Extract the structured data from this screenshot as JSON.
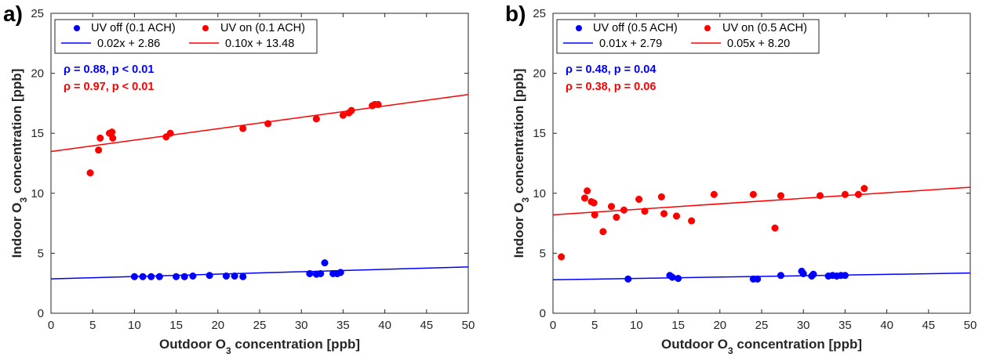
{
  "chart_data": [
    {
      "type": "scatter",
      "panel_label": "a)",
      "xlabel": "Outdoor O3 concentration [ppb]",
      "ylabel": "Indoor O3 concentration [ppb]",
      "xlim": [
        0,
        50
      ],
      "ylim": [
        0,
        25
      ],
      "xticks": [
        0,
        5,
        10,
        15,
        20,
        25,
        30,
        35,
        40,
        45,
        50
      ],
      "yticks": [
        0,
        5,
        10,
        15,
        20,
        25
      ],
      "grid": false,
      "legend_position": "top-left",
      "series": [
        {
          "name": "UV off (0.1 ACH)",
          "color": "#0000ff",
          "x": [
            10.0,
            11.0,
            12.0,
            13.0,
            15.0,
            16.0,
            17.0,
            19.0,
            21.0,
            22.0,
            23.0,
            31.0,
            31.8,
            32.3,
            32.8,
            33.8,
            34.3,
            34.7
          ],
          "y": [
            3.05,
            3.05,
            3.05,
            3.05,
            3.05,
            3.05,
            3.1,
            3.15,
            3.1,
            3.1,
            3.05,
            3.3,
            3.25,
            3.3,
            4.2,
            3.3,
            3.3,
            3.4
          ],
          "fit": {
            "label": "0.02x + 2.86",
            "slope": 0.02,
            "intercept": 2.86
          },
          "stat": "ρ = 0.88, p < 0.01"
        },
        {
          "name": "UV on (0.1 ACH)",
          "color": "#ff0000",
          "x": [
            4.7,
            5.7,
            5.9,
            7.0,
            7.3,
            7.4,
            13.8,
            14.3,
            23.0,
            26.0,
            31.8,
            35.0,
            35.7,
            36.0,
            38.5,
            38.8,
            39.2
          ],
          "y": [
            11.7,
            13.6,
            14.6,
            15.0,
            15.1,
            14.6,
            14.7,
            15.0,
            15.4,
            15.8,
            16.2,
            16.5,
            16.7,
            16.9,
            17.3,
            17.4,
            17.4
          ],
          "fit": {
            "label": "0.10x + 13.48",
            "slope": 0.095,
            "intercept": 13.48
          },
          "stat": "ρ = 0.97, p < 0.01"
        }
      ]
    },
    {
      "type": "scatter",
      "panel_label": "b)",
      "xlabel": "Outdoor O3 concentration [ppb]",
      "ylabel": "Indoor O3 concentration [ppb]",
      "xlim": [
        0,
        50
      ],
      "ylim": [
        0,
        25
      ],
      "xticks": [
        0,
        5,
        10,
        15,
        20,
        25,
        30,
        35,
        40,
        45,
        50
      ],
      "yticks": [
        0,
        5,
        10,
        15,
        20,
        25
      ],
      "grid": false,
      "legend_position": "top-left",
      "series": [
        {
          "name": "UV off (0.5 ACH)",
          "color": "#0000ff",
          "x": [
            9.0,
            14.0,
            14.3,
            15.0,
            24.0,
            24.5,
            27.3,
            29.8,
            30.0,
            31.0,
            31.2,
            33.0,
            33.5,
            34.0,
            34.5,
            35.0
          ],
          "y": [
            2.85,
            3.15,
            3.0,
            2.9,
            2.85,
            2.85,
            3.15,
            3.5,
            3.3,
            3.1,
            3.25,
            3.1,
            3.15,
            3.1,
            3.15,
            3.15
          ],
          "fit": {
            "label": "0.01x + 2.79",
            "slope": 0.0112,
            "intercept": 2.79
          },
          "stat": "ρ = 0.48, p = 0.04"
        },
        {
          "name": "UV on (0.5 ACH)",
          "color": "#ff0000",
          "x": [
            1.0,
            3.8,
            4.1,
            4.6,
            4.9,
            5.0,
            6.0,
            7.0,
            7.6,
            8.5,
            10.3,
            11.0,
            13.0,
            13.3,
            14.8,
            16.6,
            19.3,
            24.0,
            26.6,
            27.3,
            32.0,
            35.0,
            36.6,
            37.3
          ],
          "y": [
            4.7,
            9.6,
            10.2,
            9.3,
            9.2,
            8.2,
            6.8,
            8.9,
            8.0,
            8.6,
            9.5,
            8.5,
            9.7,
            8.3,
            8.1,
            7.7,
            9.9,
            9.9,
            7.1,
            9.8,
            9.8,
            9.9,
            9.9,
            10.4
          ],
          "fit": {
            "label": "0.05x + 8.20",
            "slope": 0.046,
            "intercept": 8.2
          },
          "stat": "ρ = 0.38, p = 0.06"
        }
      ]
    }
  ]
}
